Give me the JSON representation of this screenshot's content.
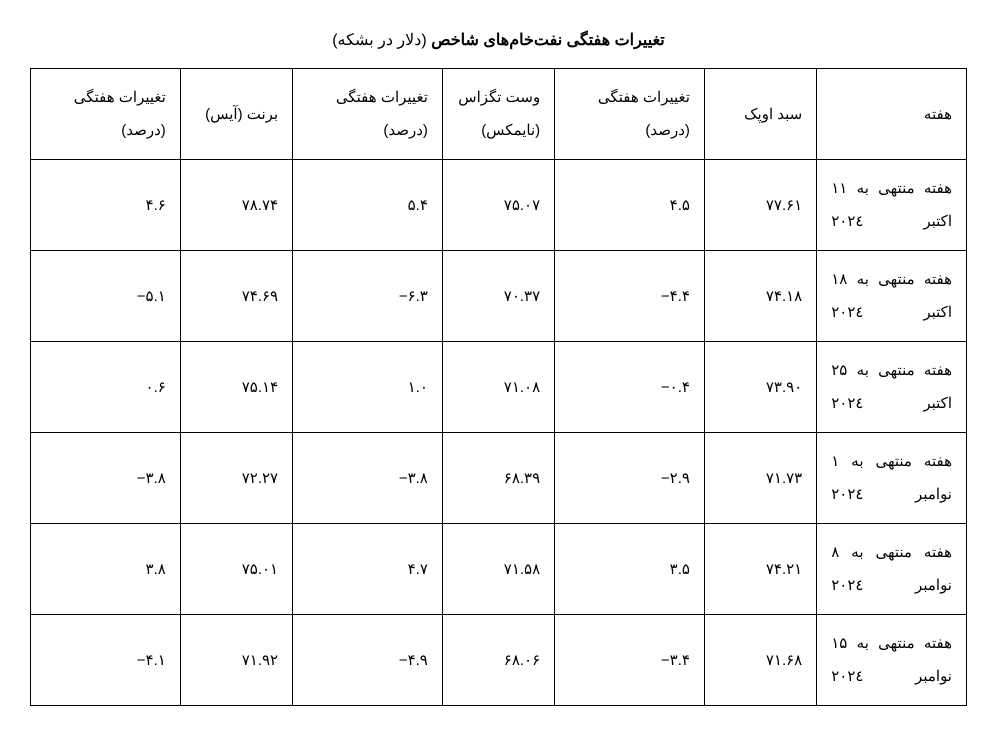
{
  "title_main": "تغییرات هفتگی نفت‌خام‌های شاخص",
  "title_sub": "(دلار در بشکه)",
  "columns": [
    "هفته",
    "سبد اوپک",
    "تغییرات هفتگی (درصد)",
    "وست تگزاس (نایمکس)",
    "تغییرات هفتگی (درصد)",
    "برنت (آیس)",
    "تغییرات هفتگی (درصد)"
  ],
  "rows": [
    {
      "week": "هفته منتهی به ۱۱ اکتبر ۲۰۲٤",
      "opec": "۷۷.۶۱",
      "opec_chg": "۴.۵",
      "wti": "۷۵.۰۷",
      "wti_chg": "۵.۴",
      "brent": "۷۸.۷۴",
      "brent_chg": "۴.۶"
    },
    {
      "week": "هفته منتهی به ۱۸ اکتبر ۲۰۲٤",
      "opec": "۷۴.۱۸",
      "opec_chg": "-۴.۴",
      "wti": "۷۰.۳۷",
      "wti_chg": "-۶.۳",
      "brent": "۷۴.۶۹",
      "brent_chg": "-۵.۱"
    },
    {
      "week": "هفته منتهی به ۲۵ اکتبر ۲۰۲٤",
      "opec": "۷۳.۹۰",
      "opec_chg": "-۰.۴",
      "wti": "۷۱.۰۸",
      "wti_chg": "۱.۰",
      "brent": "۷۵.۱۴",
      "brent_chg": "۰.۶"
    },
    {
      "week": "هفته منتهی به ۱ نوامبر ۲۰۲٤",
      "opec": "۷۱.۷۳",
      "opec_chg": "-۲.۹",
      "wti": "۶۸.۳۹",
      "wti_chg": "-۳.۸",
      "brent": "۷۲.۲۷",
      "brent_chg": "-۳.۸"
    },
    {
      "week": "هفته منتهی به ۸ نوامبر ۲۰۲٤",
      "opec": "۷۴.۲۱",
      "opec_chg": "۳.۵",
      "wti": "۷۱.۵۸",
      "wti_chg": "۴.۷",
      "brent": "۷۵.۰۱",
      "brent_chg": "۳.۸"
    },
    {
      "week": "هفته منتهی به ۱۵ نوامبر ۲۰۲٤",
      "opec": "۷۱.۶۸",
      "opec_chg": "-۳.۴",
      "wti": "۶۸.۰۶",
      "wti_chg": "-۴.۹",
      "brent": "۷۱.۹۲",
      "brent_chg": "-۴.۱"
    }
  ]
}
